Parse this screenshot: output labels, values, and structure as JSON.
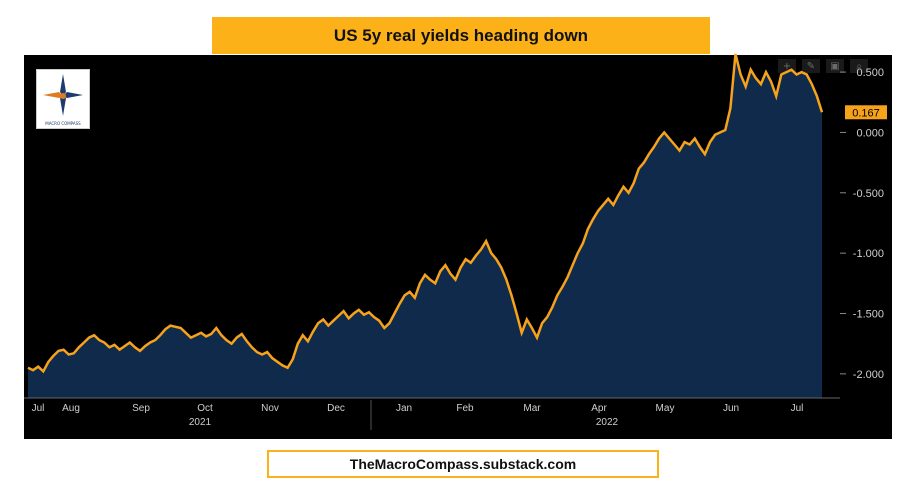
{
  "title": "US 5y real yields heading down",
  "footer": "TheMacroCompass.substack.com",
  "logo": {
    "text": "MACRO COMPASS"
  },
  "toolbar": {
    "icons": [
      "plus-icon",
      "pencil-icon",
      "save-icon",
      "zoom-icon"
    ]
  },
  "colors": {
    "line": "#f7a21b",
    "area": "#0f2a4a",
    "badge": "#f7a21b",
    "title_bg": "#fbb117",
    "background": "#000000",
    "axis_text": "#cfcfcf"
  },
  "chart_data": {
    "type": "area",
    "title": "US 5y real yields heading down",
    "xlabel": "",
    "ylabel": "",
    "ylim": [
      -2.2,
      0.6
    ],
    "yticks": [
      "0.500",
      "0.000",
      "-0.500",
      "-1.000",
      "-1.500",
      "-2.000"
    ],
    "ytick_values": [
      0.5,
      0.0,
      -0.5,
      -1.0,
      -1.5,
      -2.0
    ],
    "x_month_labels": [
      "Jul",
      "Aug",
      "Sep",
      "Oct",
      "Nov",
      "Dec",
      "Jan",
      "Feb",
      "Mar",
      "Apr",
      "May",
      "Jun",
      "Jul"
    ],
    "x_year_labels": [
      "2021",
      "2022"
    ],
    "last_value_label": "0.167",
    "last_value": 0.167,
    "series": [
      {
        "values": [
          -1.95,
          -1.97,
          -1.94,
          -1.98,
          -1.9,
          -1.85,
          -1.81,
          -1.8,
          -1.84,
          -1.83,
          -1.78,
          -1.74,
          -1.7,
          -1.68,
          -1.72,
          -1.74,
          -1.78,
          -1.76,
          -1.8,
          -1.77,
          -1.74,
          -1.78,
          -1.81,
          -1.77,
          -1.74,
          -1.72,
          -1.68,
          -1.63,
          -1.6,
          -1.61,
          -1.62,
          -1.66,
          -1.7,
          -1.68,
          -1.66,
          -1.69,
          -1.67,
          -1.62,
          -1.68,
          -1.72,
          -1.75,
          -1.7,
          -1.67,
          -1.73,
          -1.78,
          -1.82,
          -1.84,
          -1.82,
          -1.87,
          -1.9,
          -1.93,
          -1.95,
          -1.88,
          -1.75,
          -1.68,
          -1.73,
          -1.65,
          -1.58,
          -1.55,
          -1.6,
          -1.56,
          -1.52,
          -1.48,
          -1.54,
          -1.5,
          -1.47,
          -1.51,
          -1.49,
          -1.53,
          -1.56,
          -1.62,
          -1.58,
          -1.5,
          -1.42,
          -1.35,
          -1.32,
          -1.37,
          -1.25,
          -1.18,
          -1.22,
          -1.25,
          -1.15,
          -1.1,
          -1.17,
          -1.22,
          -1.12,
          -1.05,
          -1.08,
          -1.02,
          -0.97,
          -0.9,
          -1.0,
          -1.05,
          -1.12,
          -1.22,
          -1.35,
          -1.5,
          -1.66,
          -1.55,
          -1.62,
          -1.7,
          -1.58,
          -1.53,
          -1.45,
          -1.35,
          -1.28,
          -1.2,
          -1.1,
          -1.0,
          -0.92,
          -0.8,
          -0.72,
          -0.65,
          -0.6,
          -0.55,
          -0.6,
          -0.52,
          -0.45,
          -0.5,
          -0.42,
          -0.3,
          -0.25,
          -0.18,
          -0.12,
          -0.05,
          0.0,
          -0.05,
          -0.1,
          -0.15,
          -0.08,
          -0.1,
          -0.05,
          -0.12,
          -0.18,
          -0.08,
          -0.02,
          0.0,
          0.02,
          0.2,
          0.65,
          0.48,
          0.38,
          0.52,
          0.45,
          0.4,
          0.5,
          0.42,
          0.3,
          0.48,
          0.5,
          0.52,
          0.48,
          0.5,
          0.48,
          0.4,
          0.3,
          0.167
        ]
      }
    ]
  }
}
